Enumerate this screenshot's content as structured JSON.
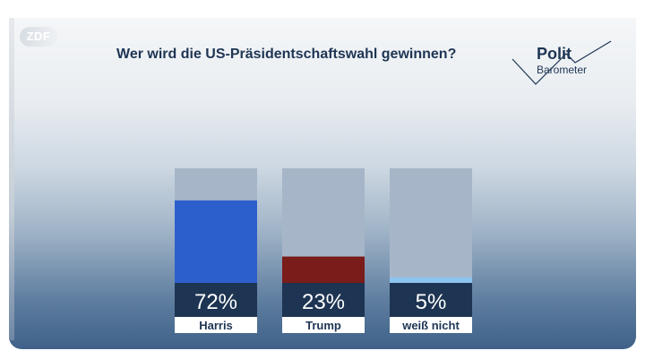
{
  "header": {
    "channel_logo": "ZDF",
    "title": "Wer wird die US-Präsidentschaftswahl gewinnen?",
    "brand_line1": "Polit",
    "brand_line2": "Barometer"
  },
  "colors": {
    "harris": "#2d5fcc",
    "trump": "#7a1c1a",
    "undecided": "#8cc4f0",
    "bar_track": "#a6b6c8",
    "value_box": "#1d3452",
    "label_box": "#ffffff",
    "text_dark": "#1e3554"
  },
  "chart_data": {
    "type": "bar",
    "title": "Wer wird die US-Präsidentschaftswahl gewinnen?",
    "categories": [
      "Harris",
      "Trump",
      "weiß nicht"
    ],
    "values": [
      72,
      23,
      5
    ],
    "value_labels": [
      "72%",
      "23%",
      "5%"
    ],
    "unit": "%",
    "ylim": [
      0,
      100
    ],
    "grid": false,
    "legend": "none"
  }
}
